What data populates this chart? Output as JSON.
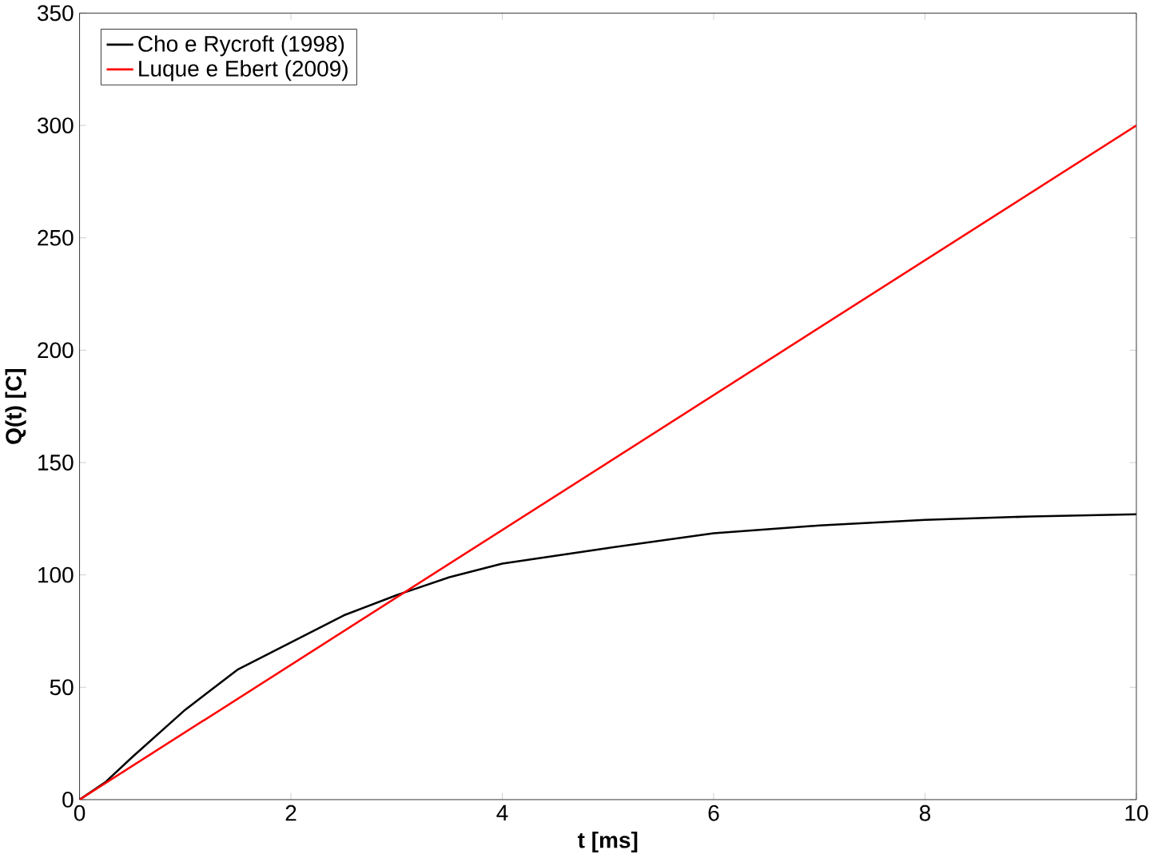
{
  "chart_data": {
    "type": "line",
    "xlabel": "t [ms]",
    "ylabel": "Q(t) [C]",
    "xlim": [
      0,
      10
    ],
    "ylim": [
      0,
      350
    ],
    "xticks": [
      0,
      2,
      4,
      6,
      8,
      10
    ],
    "yticks": [
      0,
      50,
      100,
      150,
      200,
      250,
      300,
      350
    ],
    "grid": false,
    "legend": "top left",
    "line_style": "solid",
    "marker": "none",
    "series": [
      {
        "name": "Cho e Rycroft (1998)",
        "color": "#000000",
        "x": [
          0,
          0.25,
          0.5,
          1,
          1.5,
          2,
          2.5,
          3,
          3.5,
          4,
          5,
          6,
          7,
          8,
          9,
          10
        ],
        "values": [
          0,
          8,
          19,
          40,
          58,
          70,
          82,
          91,
          99,
          105,
          112,
          118.5,
          122,
          124.5,
          126,
          127
        ]
      },
      {
        "name": "Luque e Ebert (2009)",
        "color": "#ff0000",
        "x": [
          0,
          10
        ],
        "values": [
          0,
          300
        ]
      }
    ]
  }
}
